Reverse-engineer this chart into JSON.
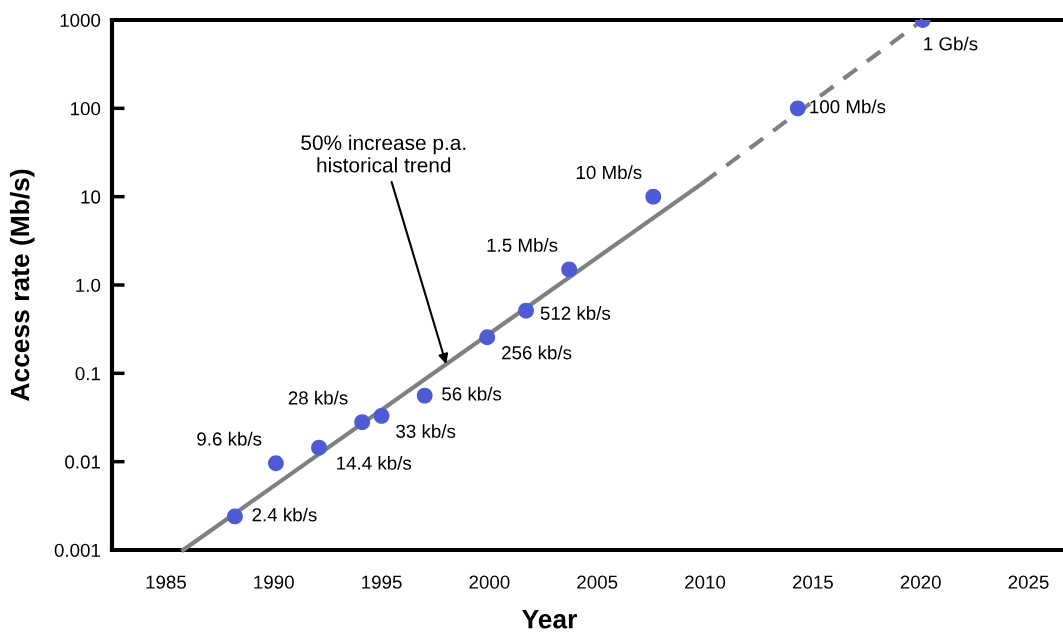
{
  "chart_data": {
    "type": "scatter",
    "xlabel": "Year",
    "ylabel": "Access rate (Mb/s)",
    "log": "y",
    "xlim": [
      1982.5,
      2026.6
    ],
    "ylim": [
      0.001,
      1000
    ],
    "xticks": [
      1985,
      1990,
      1995,
      2000,
      2005,
      2010,
      2015,
      2020,
      2025
    ],
    "yticks": [
      0.001,
      0.01,
      0.1,
      {
        "value": 1,
        "label": "1.0"
      },
      10,
      100,
      1000
    ],
    "grid": false,
    "legend": false,
    "marker": "circle",
    "series": [
      {
        "color": "#4f5bd5",
        "x": [
          1988.2,
          1990.1,
          1992.1,
          1994.1,
          1995.0,
          1997.0,
          1999.9,
          2001.7,
          2003.7,
          2007.6,
          2014.3,
          2020.1
        ],
        "values": [
          0.0024,
          0.0096,
          0.0144,
          0.028,
          0.033,
          0.056,
          0.256,
          0.512,
          1.5,
          10,
          100,
          1000
        ]
      },
      {
        "type": "line",
        "color": "#808080",
        "line_style": "solid",
        "marker": "none",
        "x": [
          1985.8,
          2009.9
        ],
        "values": [
          0.001,
          14.3
        ]
      },
      {
        "type": "line",
        "color": "#808080",
        "line_style": "dashed",
        "marker": "none",
        "x": [
          2009.9,
          2020.1
        ],
        "values": [
          14.3,
          1000
        ]
      }
    ],
    "annotations": [
      {
        "text": "2.4 kb/s",
        "x": 1988.2,
        "y": 0.0024
      },
      {
        "text": "9.6 kb/s",
        "x": 1990.1,
        "y": 0.0096
      },
      {
        "text": "14.4 kb/s",
        "x": 1992.1,
        "y": 0.0144
      },
      {
        "text": "28 kb/s",
        "x": 1994.1,
        "y": 0.028
      },
      {
        "text": "33 kb/s",
        "x": 1995.0,
        "y": 0.033
      },
      {
        "text": "56 kb/s",
        "x": 1997.0,
        "y": 0.056
      },
      {
        "text": "256 kb/s",
        "x": 1999.9,
        "y": 0.256
      },
      {
        "text": "512 kb/s",
        "x": 2001.7,
        "y": 0.512
      },
      {
        "text": "1.5 Mb/s",
        "x": 2003.7,
        "y": 1.5
      },
      {
        "text": "10 Mb/s",
        "x": 2007.6,
        "y": 10
      },
      {
        "text": "100 Mb/s",
        "x": 2014.3,
        "y": 100
      },
      {
        "text": "1 Gb/s",
        "x": 2020.1,
        "y": 1000
      },
      {
        "text": "50% increase p.a.\nhistorical trend",
        "x": 1998.0,
        "y": 0.127
      }
    ]
  }
}
